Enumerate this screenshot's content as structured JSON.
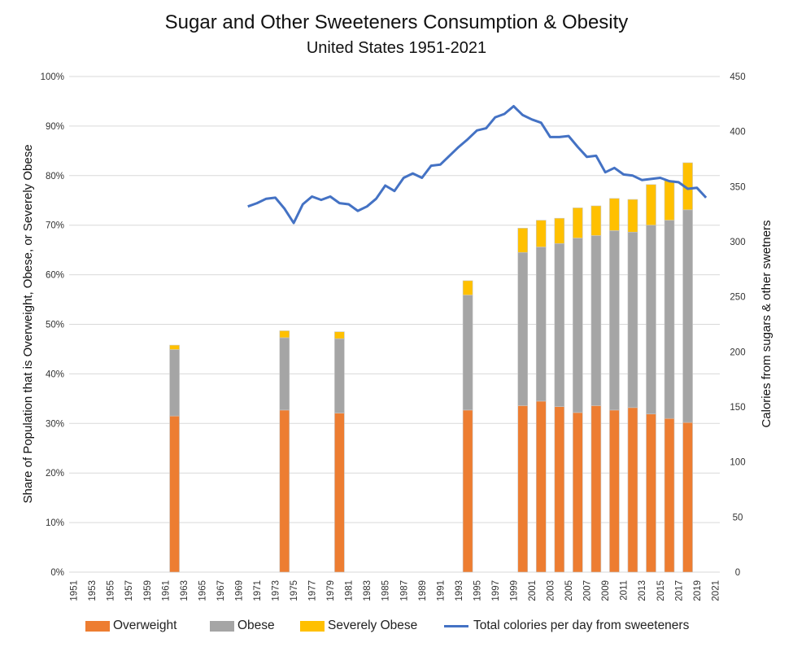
{
  "colors": {
    "overweight": "#ED7D31",
    "obese": "#A5A5A5",
    "severely_obese": "#FFC000",
    "line": "#4472C4",
    "grid": "#D9D9D9"
  },
  "chart_data": {
    "type": "bar",
    "title": "Sugar and Other Sweeteners Consumption &  Obesity",
    "subtitle": "United States 1951-2021",
    "ylabel_left": "Share of Population that is Overweight, Obese, or Severely Obese",
    "ylabel_right": "Calories from sugars & other swetners",
    "y_left_ticks": [
      "0%",
      "10%",
      "20%",
      "30%",
      "40%",
      "50%",
      "60%",
      "70%",
      "80%",
      "90%",
      "100%"
    ],
    "y_right_ticks": [
      "0",
      "50",
      "100",
      "150",
      "200",
      "250",
      "300",
      "350",
      "400",
      "450"
    ],
    "ylim_left": [
      0,
      100
    ],
    "ylim_right": [
      0,
      450
    ],
    "x_tick_labels": [
      "1951",
      "1953",
      "1955",
      "1957",
      "1959",
      "1961",
      "1963",
      "1965",
      "1967",
      "1969",
      "1971",
      "1973",
      "1975",
      "1977",
      "1979",
      "1981",
      "1983",
      "1985",
      "1987",
      "1989",
      "1991",
      "1993",
      "1995",
      "1997",
      "1999",
      "2001",
      "2003",
      "2005",
      "2007",
      "2009",
      "2011",
      "2013",
      "2015",
      "2017",
      "2019",
      "2021"
    ],
    "x_range": [
      1951,
      2021
    ],
    "stacked_series": [
      {
        "name": "Overweight",
        "color_key": "overweight"
      },
      {
        "name": "Obese",
        "color_key": "obese"
      },
      {
        "name": "Severely Obese",
        "color_key": "severely_obese"
      }
    ],
    "bars": [
      {
        "year": 1962,
        "overweight": 31.5,
        "obese": 13.4,
        "severely_obese": 0.9
      },
      {
        "year": 1974,
        "overweight": 32.7,
        "obese": 14.6,
        "severely_obese": 1.4
      },
      {
        "year": 1980,
        "overweight": 32.1,
        "obese": 15.0,
        "severely_obese": 1.4
      },
      {
        "year": 1994,
        "overweight": 32.7,
        "obese": 23.2,
        "severely_obese": 2.9
      },
      {
        "year": 2000,
        "overweight": 33.6,
        "obese": 30.9,
        "severely_obese": 4.9
      },
      {
        "year": 2002,
        "overweight": 34.5,
        "obese": 31.1,
        "severely_obese": 5.4
      },
      {
        "year": 2004,
        "overweight": 33.4,
        "obese": 32.9,
        "severely_obese": 5.1
      },
      {
        "year": 2006,
        "overweight": 32.2,
        "obese": 35.2,
        "severely_obese": 6.1
      },
      {
        "year": 2008,
        "overweight": 33.6,
        "obese": 34.3,
        "severely_obese": 6.0
      },
      {
        "year": 2010,
        "overweight": 32.7,
        "obese": 36.2,
        "severely_obese": 6.5
      },
      {
        "year": 2012,
        "overweight": 33.2,
        "obese": 35.4,
        "severely_obese": 6.6
      },
      {
        "year": 2014,
        "overweight": 31.9,
        "obese": 38.1,
        "severely_obese": 8.2
      },
      {
        "year": 2016,
        "overweight": 31.0,
        "obese": 40.0,
        "severely_obese": 8.0
      },
      {
        "year": 2018,
        "overweight": 30.2,
        "obese": 42.9,
        "severely_obese": 9.5
      }
    ],
    "line_series": {
      "name": "Total colories per day from sweeteners",
      "axis": "right",
      "points": [
        [
          1970,
          332
        ],
        [
          1971,
          335
        ],
        [
          1972,
          339
        ],
        [
          1973,
          340
        ],
        [
          1974,
          330
        ],
        [
          1975,
          317
        ],
        [
          1976,
          334
        ],
        [
          1977,
          341
        ],
        [
          1978,
          338
        ],
        [
          1979,
          341
        ],
        [
          1980,
          335
        ],
        [
          1981,
          334
        ],
        [
          1982,
          328
        ],
        [
          1983,
          332
        ],
        [
          1984,
          339
        ],
        [
          1985,
          351
        ],
        [
          1986,
          346
        ],
        [
          1987,
          358
        ],
        [
          1988,
          362
        ],
        [
          1989,
          358
        ],
        [
          1990,
          369
        ],
        [
          1991,
          370
        ],
        [
          1992,
          378
        ],
        [
          1993,
          386
        ],
        [
          1994,
          393
        ],
        [
          1995,
          401
        ],
        [
          1996,
          403
        ],
        [
          1997,
          413
        ],
        [
          1998,
          416
        ],
        [
          1999,
          423
        ],
        [
          2000,
          415
        ],
        [
          2001,
          411
        ],
        [
          2002,
          408
        ],
        [
          2003,
          395
        ],
        [
          2004,
          395
        ],
        [
          2005,
          396
        ],
        [
          2006,
          386
        ],
        [
          2007,
          377
        ],
        [
          2008,
          378
        ],
        [
          2009,
          363
        ],
        [
          2010,
          367
        ],
        [
          2011,
          361
        ],
        [
          2012,
          360
        ],
        [
          2013,
          356
        ],
        [
          2014,
          357
        ],
        [
          2015,
          358
        ],
        [
          2016,
          355
        ],
        [
          2017,
          354
        ],
        [
          2018,
          348
        ],
        [
          2019,
          349
        ],
        [
          2020,
          340
        ]
      ]
    },
    "grid": true,
    "legend_position": "bottom"
  },
  "legend": {
    "overweight": "Overweight",
    "obese": "Obese",
    "severely_obese": "Severely Obese",
    "line": "Total colories per day from sweeteners"
  }
}
